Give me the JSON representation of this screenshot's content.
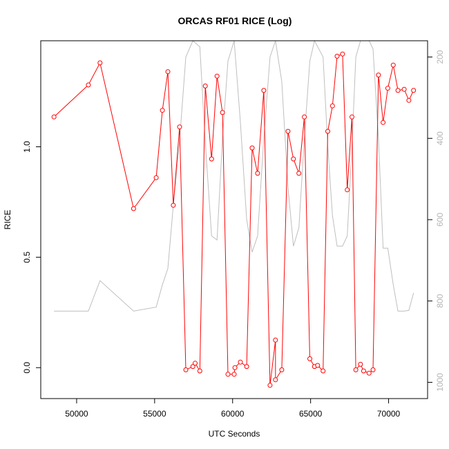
{
  "chart_data": {
    "type": "line",
    "title": "ORCAS RF01 RICE (Log)",
    "xlabel": "UTC Seconds",
    "ylabel": "RICE",
    "xlim": [
      47700,
      72500
    ],
    "ylim": [
      -0.14,
      1.48
    ],
    "x_ticks": [
      50000,
      55000,
      60000,
      65000,
      70000
    ],
    "x_tick_labels": [
      "50000",
      "55000",
      "60000",
      "65000",
      "70000"
    ],
    "y_ticks": [
      0.0,
      0.5,
      1.0
    ],
    "y_tick_labels": [
      "0.0",
      "0.5",
      "1.0"
    ],
    "y2_ticks": [
      200,
      400,
      600,
      800,
      1000
    ],
    "y2_tick_labels": [
      "200",
      "400",
      "600",
      "800",
      "1000"
    ],
    "y2_inverted": true,
    "y2_lim": [
      160,
      1040
    ],
    "grid": false,
    "series": [
      {
        "color": "#ff0000",
        "style": "line+open-circles",
        "axis": "left",
        "points": [
          [
            48550,
            1.135
          ],
          [
            50750,
            1.28
          ],
          [
            51500,
            1.38
          ],
          [
            53650,
            0.72
          ],
          [
            55100,
            0.86
          ],
          [
            55500,
            1.165
          ],
          [
            55850,
            1.34
          ],
          [
            56200,
            0.735
          ],
          [
            56600,
            1.09
          ],
          [
            57000,
            -0.01
          ],
          [
            57450,
            0.005
          ],
          [
            57600,
            0.02
          ],
          [
            57900,
            -0.015
          ],
          [
            58250,
            1.275
          ],
          [
            58650,
            0.945
          ],
          [
            59000,
            1.32
          ],
          [
            59350,
            1.155
          ],
          [
            59700,
            -0.03
          ],
          [
            60100,
            -0.03
          ],
          [
            60150,
            0.0
          ],
          [
            60500,
            0.025
          ],
          [
            60900,
            0.005
          ],
          [
            61250,
            0.995
          ],
          [
            61600,
            0.88
          ],
          [
            62000,
            1.255
          ],
          [
            62400,
            -0.08
          ],
          [
            62750,
            0.125
          ],
          [
            62750,
            -0.055
          ],
          [
            63150,
            -0.01
          ],
          [
            63550,
            1.07
          ],
          [
            63900,
            0.945
          ],
          [
            64250,
            0.88
          ],
          [
            64600,
            1.135
          ],
          [
            64950,
            0.04
          ],
          [
            65250,
            0.005
          ],
          [
            65450,
            0.01
          ],
          [
            65800,
            -0.015
          ],
          [
            66100,
            1.07
          ],
          [
            66400,
            1.185
          ],
          [
            66700,
            1.41
          ],
          [
            67050,
            1.42
          ],
          [
            67350,
            0.805
          ],
          [
            67650,
            1.135
          ],
          [
            67900,
            -0.01
          ],
          [
            68200,
            0.015
          ],
          [
            68400,
            -0.015
          ],
          [
            68750,
            -0.025
          ],
          [
            69000,
            -0.01
          ],
          [
            69350,
            1.325
          ],
          [
            69650,
            1.11
          ],
          [
            69950,
            1.265
          ],
          [
            70300,
            1.37
          ],
          [
            70600,
            1.255
          ],
          [
            71000,
            1.26
          ],
          [
            71300,
            1.21
          ],
          [
            71600,
            1.255
          ]
        ]
      },
      {
        "color": "#bebebe",
        "style": "line",
        "axis": "right",
        "points": [
          [
            48550,
            825
          ],
          [
            50750,
            825
          ],
          [
            51500,
            750
          ],
          [
            53650,
            825
          ],
          [
            55100,
            815
          ],
          [
            55500,
            760
          ],
          [
            55850,
            720
          ],
          [
            56200,
            565
          ],
          [
            56600,
            405
          ],
          [
            57000,
            200
          ],
          [
            57450,
            160
          ],
          [
            57900,
            175
          ],
          [
            58250,
            410
          ],
          [
            58650,
            640
          ],
          [
            59000,
            650
          ],
          [
            59350,
            400
          ],
          [
            59700,
            210
          ],
          [
            60100,
            160
          ],
          [
            60500,
            360
          ],
          [
            60900,
            600
          ],
          [
            61250,
            680
          ],
          [
            61600,
            640
          ],
          [
            62000,
            400
          ],
          [
            62400,
            200
          ],
          [
            62750,
            160
          ],
          [
            63150,
            260
          ],
          [
            63550,
            520
          ],
          [
            63900,
            665
          ],
          [
            64250,
            620
          ],
          [
            64600,
            400
          ],
          [
            64950,
            210
          ],
          [
            65250,
            160
          ],
          [
            65800,
            200
          ],
          [
            66100,
            420
          ],
          [
            66400,
            590
          ],
          [
            66700,
            665
          ],
          [
            67050,
            665
          ],
          [
            67350,
            640
          ],
          [
            67650,
            420
          ],
          [
            67900,
            200
          ],
          [
            68200,
            160
          ],
          [
            68750,
            160
          ],
          [
            69000,
            180
          ],
          [
            69350,
            400
          ],
          [
            69650,
            670
          ],
          [
            69950,
            670
          ],
          [
            70300,
            760
          ],
          [
            70600,
            825
          ],
          [
            71000,
            825
          ],
          [
            71300,
            823
          ],
          [
            71600,
            780
          ]
        ]
      }
    ]
  }
}
